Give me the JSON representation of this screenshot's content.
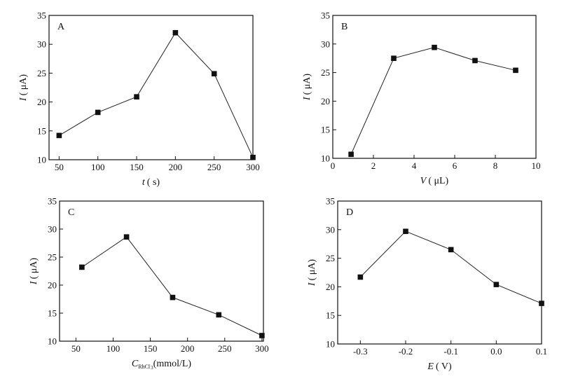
{
  "chart_data": [
    {
      "type": "line",
      "panel": "A",
      "xlabel": {
        "symbol": "t",
        "unit": "( s)"
      },
      "ylabel": {
        "symbol": "I",
        "unit": "( μA)"
      },
      "x": [
        50,
        100,
        150,
        200,
        250,
        300
      ],
      "y": [
        14.2,
        18.2,
        20.9,
        32.0,
        24.9,
        10.4
      ],
      "xlim": [
        37,
        300
      ],
      "ylim": [
        10,
        35
      ],
      "xticks": [
        50,
        100,
        150,
        200,
        250,
        300
      ],
      "xtick_labels": [
        "50",
        "100",
        "150",
        "200",
        "250",
        "300"
      ],
      "yticks": [
        10,
        15,
        20,
        25,
        30,
        35
      ],
      "ytick_labels": [
        "10",
        "15",
        "20",
        "25",
        "30",
        "35"
      ],
      "marker": "square",
      "grid": false
    },
    {
      "type": "line",
      "panel": "B",
      "xlabel": {
        "symbol": "V",
        "unit": "( μL)"
      },
      "ylabel": {
        "symbol": "I",
        "unit": "( μA)"
      },
      "x": [
        0.9,
        3.0,
        5.0,
        7.0,
        9.0
      ],
      "y": [
        10.7,
        27.5,
        29.4,
        27.1,
        25.4
      ],
      "xlim": [
        0,
        10
      ],
      "ylim": [
        10,
        35
      ],
      "xticks": [
        0,
        2,
        4,
        6,
        8,
        10
      ],
      "xtick_labels": [
        "0",
        "2",
        "4",
        "6",
        "8",
        "10"
      ],
      "yticks": [
        10,
        15,
        20,
        25,
        30,
        35
      ],
      "ytick_labels": [
        "10",
        "15",
        "20",
        "25",
        "30",
        "35"
      ],
      "marker": "square",
      "grid": false
    },
    {
      "type": "line",
      "panel": "C",
      "xlabel": {
        "symbol": "C",
        "subscript": "RhCl",
        "subscript2": "3",
        "unit": "(mmol/L)"
      },
      "ylabel": {
        "symbol": "I",
        "unit": "( μA)"
      },
      "x": [
        58,
        118,
        180,
        242,
        300
      ],
      "y": [
        23.2,
        28.6,
        17.8,
        14.7,
        11.0
      ],
      "xlim": [
        28,
        302
      ],
      "ylim": [
        10,
        35
      ],
      "xticks": [
        50,
        100,
        150,
        200,
        250,
        300
      ],
      "xtick_labels": [
        "50",
        "100",
        "150",
        "200",
        "250",
        "300"
      ],
      "yticks": [
        10,
        15,
        20,
        25,
        30,
        35
      ],
      "ytick_labels": [
        "10",
        "15",
        "20",
        "25",
        "30",
        "35"
      ],
      "marker": "square",
      "grid": false
    },
    {
      "type": "line",
      "panel": "D",
      "xlabel": {
        "symbol": "E",
        "unit": "( V)"
      },
      "ylabel": {
        "symbol": "I",
        "unit": "( μA)"
      },
      "x": [
        -0.3,
        -0.2,
        -0.1,
        0.0,
        0.1
      ],
      "y": [
        21.7,
        29.7,
        26.5,
        20.4,
        17.1
      ],
      "xlim": [
        -0.35,
        0.1
      ],
      "ylim": [
        10,
        35
      ],
      "xticks": [
        -0.3,
        -0.2,
        -0.1,
        0.0,
        0.1
      ],
      "xtick_labels": [
        "-0.3",
        "-0.2",
        "-0.1",
        "0.0",
        "0.1"
      ],
      "yticks": [
        10,
        15,
        20,
        25,
        30,
        35
      ],
      "ytick_labels": [
        "10",
        "15",
        "20",
        "25",
        "30",
        "35"
      ],
      "marker": "square",
      "grid": false
    }
  ]
}
